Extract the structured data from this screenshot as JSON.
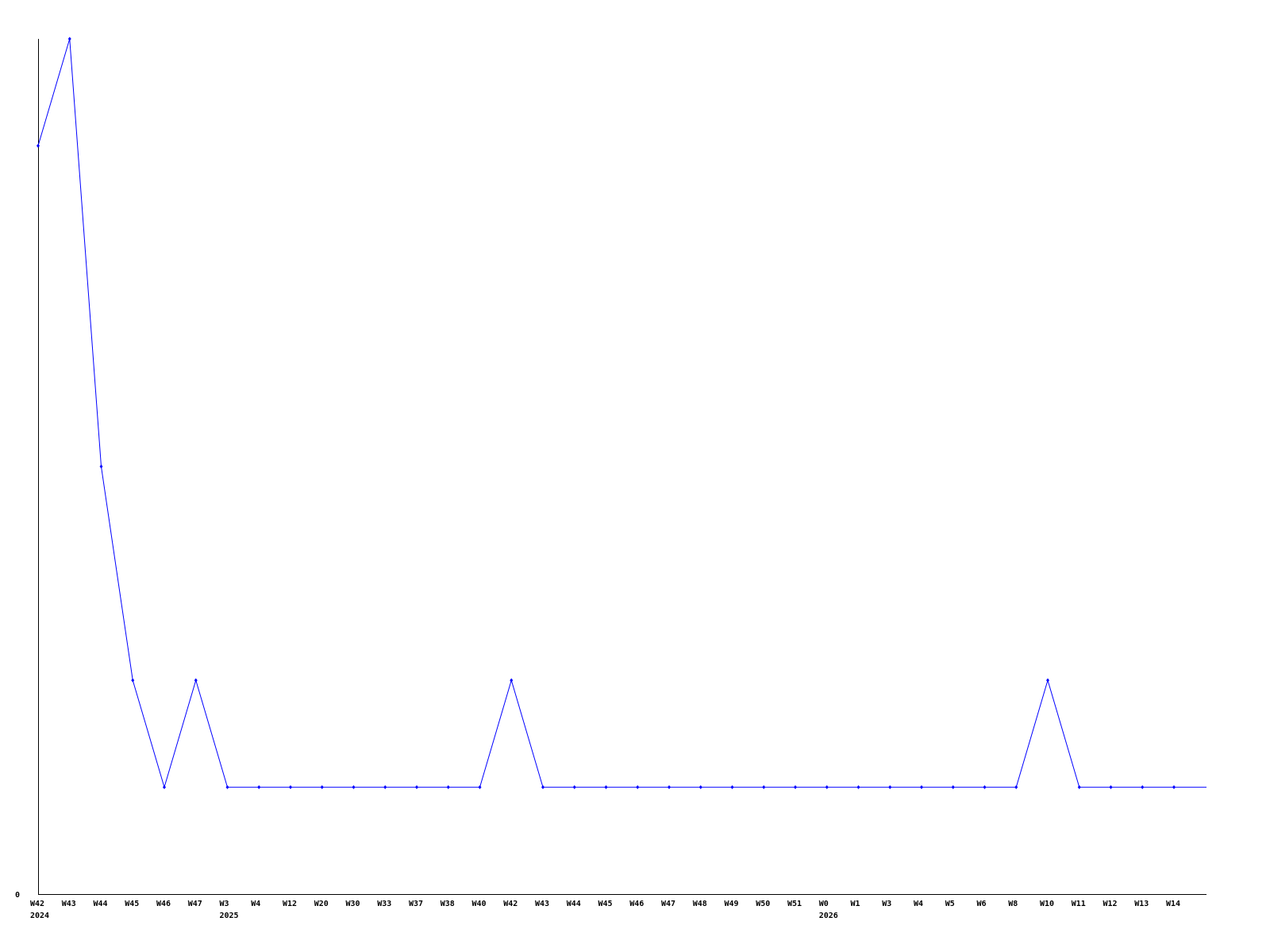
{
  "chart_data": {
    "type": "line",
    "categories": [
      "W42",
      "W43",
      "W44",
      "W45",
      "W46",
      "W47",
      "W3",
      "W4",
      "W12",
      "W20",
      "W30",
      "W33",
      "W37",
      "W38",
      "W40",
      "W42",
      "W43",
      "W44",
      "W45",
      "W46",
      "W47",
      "W48",
      "W49",
      "W50",
      "W51",
      "W0",
      "W1",
      "W3",
      "W4",
      "W5",
      "W6",
      "W8",
      "W10",
      "W11",
      "W12",
      "W13",
      "W14"
    ],
    "year_labels": [
      {
        "index": 0,
        "label": "2024"
      },
      {
        "index": 6,
        "label": "2025"
      },
      {
        "index": 25,
        "label": "2026"
      }
    ],
    "series": [
      {
        "values": [
          7,
          8,
          4,
          2,
          1,
          2,
          1,
          1,
          1,
          1,
          1,
          1,
          1,
          1,
          1,
          2,
          1,
          1,
          1,
          1,
          1,
          1,
          1,
          1,
          1,
          1,
          1,
          1,
          1,
          1,
          1,
          1,
          2,
          1,
          1,
          1,
          1
        ]
      }
    ],
    "y_tick_labels": [
      "0"
    ],
    "ylim": [
      0,
      8
    ],
    "grid": false,
    "line_color": "#0000ff",
    "axis_color": "#000000"
  }
}
